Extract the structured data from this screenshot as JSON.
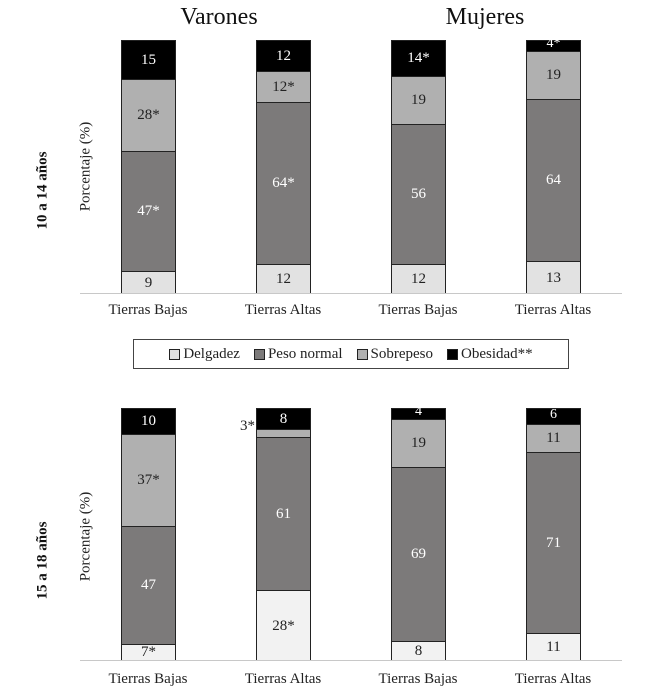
{
  "chart_data": [
    {
      "type": "bar",
      "stacked": true,
      "panel": "10 a 14 años",
      "ylabel": "Porcentaje (%)",
      "groups": [
        "Varones",
        "Mujeres"
      ],
      "categories": [
        "Tierras Bajas",
        "Tierras Altas",
        "Tierras Bajas",
        "Tierras Altas"
      ],
      "series": [
        {
          "name": "Delgadez",
          "values": [
            9,
            12,
            12,
            13
          ],
          "labels": [
            "9",
            "12",
            "12",
            "13"
          ]
        },
        {
          "name": "Peso normal",
          "values": [
            47,
            64,
            56,
            64
          ],
          "labels": [
            "47*",
            "64*",
            "56",
            "64"
          ]
        },
        {
          "name": "Sobrepeso",
          "values": [
            28,
            12,
            19,
            19
          ],
          "labels": [
            "28*",
            "12*",
            "19",
            "19"
          ]
        },
        {
          "name": "Obesidad**",
          "values": [
            15,
            12,
            14,
            4
          ],
          "labels": [
            "15",
            "12",
            "14*",
            "4*"
          ]
        }
      ],
      "ylim": [
        0,
        100
      ],
      "grid": false
    },
    {
      "type": "bar",
      "stacked": true,
      "panel": "15 a 18 años",
      "ylabel": "Porcentaje (%)",
      "groups": [
        "Varones",
        "Mujeres"
      ],
      "categories": [
        "Tierras Bajas",
        "Tierras Altas",
        "Tierras Bajas",
        "Tierras Altas"
      ],
      "series": [
        {
          "name": "Delgadez",
          "values": [
            7,
            28,
            8,
            11
          ],
          "labels": [
            "7*",
            "28*",
            "8",
            "11"
          ]
        },
        {
          "name": "Peso normal",
          "values": [
            47,
            61,
            69,
            71
          ],
          "labels": [
            "47",
            "61",
            "69",
            "71"
          ]
        },
        {
          "name": "Sobrepeso",
          "values": [
            37,
            3,
            19,
            11
          ],
          "labels": [
            "37*",
            "3*",
            "19",
            "11"
          ]
        },
        {
          "name": "Obesidad**",
          "values": [
            10,
            8,
            4,
            6
          ],
          "labels": [
            "10",
            "8",
            "4",
            "6"
          ]
        }
      ],
      "ylim": [
        0,
        100
      ],
      "grid": false
    }
  ],
  "titles": {
    "left": "Varones",
    "right": "Mujeres"
  },
  "panels": {
    "top": {
      "age_label": "10 a 14 años",
      "y_label": "Porcentaje (%)"
    },
    "bottom": {
      "age_label": "15 a 18 años",
      "y_label": "Porcentaje (%)"
    }
  },
  "x_labels": [
    "Tierras Bajas",
    "Tierras Altas",
    "Tierras Bajas",
    "Tierras Altas"
  ],
  "legend": {
    "position": "between panels",
    "items": [
      {
        "label": "Delgadez",
        "color": "#e2e2e2"
      },
      {
        "label": "Peso normal",
        "color": "#7c7a7a"
      },
      {
        "label": "Sobrepeso",
        "color": "#b0b0b0"
      },
      {
        "label": "Obesidad**",
        "color": "#000000"
      }
    ]
  },
  "colors": {
    "delgadez": "#e2e2e2",
    "peso_normal": "#7c7a7a",
    "sobrepeso": "#b0b0b0",
    "obesidad": "#000000"
  }
}
